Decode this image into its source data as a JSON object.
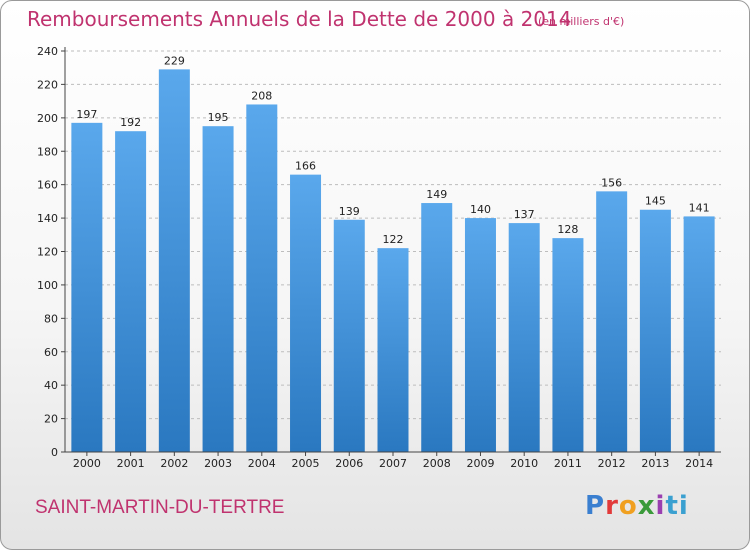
{
  "header": {
    "title": "Remboursements Annuels de la Dette de 2000 à 2014",
    "subtitle": "(en milliers d'€)"
  },
  "footer": {
    "commune": "SAINT-MARTIN-DU-TERTRE",
    "logo_text": "Proxiti"
  },
  "colors": {
    "title": "#c0336f",
    "bar_light": "#5aa8ec",
    "bar_dark": "#2a78c0"
  },
  "chart_data": {
    "type": "bar",
    "title": "Remboursements Annuels de la Dette de 2000 à 2014",
    "xlabel": "",
    "ylabel": "",
    "categories": [
      "2000",
      "2001",
      "2002",
      "2003",
      "2004",
      "2005",
      "2006",
      "2007",
      "2008",
      "2009",
      "2010",
      "2011",
      "2012",
      "2013",
      "2014"
    ],
    "values": [
      197,
      192,
      229,
      195,
      208,
      166,
      139,
      122,
      149,
      140,
      137,
      128,
      156,
      145,
      141
    ],
    "ylim": [
      0,
      240
    ],
    "yticks": [
      0,
      20,
      40,
      60,
      80,
      100,
      120,
      140,
      160,
      180,
      200,
      220,
      240
    ],
    "grid": true
  }
}
